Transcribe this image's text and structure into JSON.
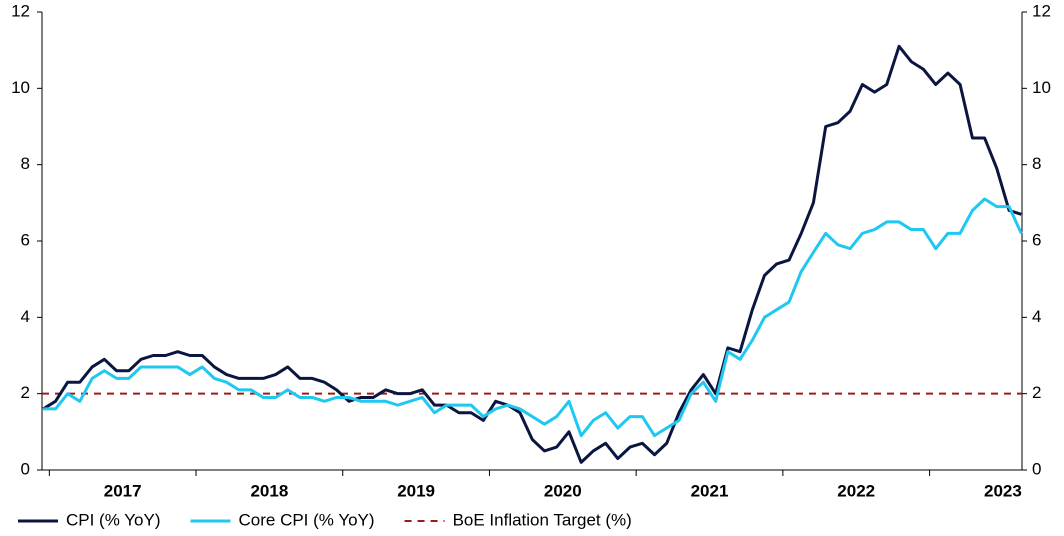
{
  "chart_data": {
    "type": "line",
    "x": [
      2016.958,
      2017.042,
      2017.125,
      2017.208,
      2017.292,
      2017.375,
      2017.458,
      2017.542,
      2017.625,
      2017.708,
      2017.792,
      2017.875,
      2017.958,
      2018.042,
      2018.125,
      2018.208,
      2018.292,
      2018.375,
      2018.458,
      2018.542,
      2018.625,
      2018.708,
      2018.792,
      2018.875,
      2018.958,
      2019.042,
      2019.125,
      2019.208,
      2019.292,
      2019.375,
      2019.458,
      2019.542,
      2019.625,
      2019.708,
      2019.792,
      2019.875,
      2019.958,
      2020.042,
      2020.125,
      2020.208,
      2020.292,
      2020.375,
      2020.458,
      2020.542,
      2020.625,
      2020.708,
      2020.792,
      2020.875,
      2020.958,
      2021.042,
      2021.125,
      2021.208,
      2021.292,
      2021.375,
      2021.458,
      2021.542,
      2021.625,
      2021.708,
      2021.792,
      2021.875,
      2021.958,
      2022.042,
      2022.125,
      2022.208,
      2022.292,
      2022.375,
      2022.458,
      2022.542,
      2022.625,
      2022.708,
      2022.792,
      2022.875,
      2022.958,
      2023.042,
      2023.125,
      2023.208,
      2023.292,
      2023.375,
      2023.458,
      2023.542,
      2023.625
    ],
    "series": [
      {
        "name": "CPI (% YoY)",
        "color": "#0b1640",
        "values": [
          1.6,
          1.8,
          2.3,
          2.3,
          2.7,
          2.9,
          2.6,
          2.6,
          2.9,
          3.0,
          3.0,
          3.1,
          3.0,
          3.0,
          2.7,
          2.5,
          2.4,
          2.4,
          2.4,
          2.5,
          2.7,
          2.4,
          2.4,
          2.3,
          2.1,
          1.8,
          1.9,
          1.9,
          2.1,
          2.0,
          2.0,
          2.1,
          1.7,
          1.7,
          1.5,
          1.5,
          1.3,
          1.8,
          1.7,
          1.5,
          0.8,
          0.5,
          0.6,
          1.0,
          0.2,
          0.5,
          0.7,
          0.3,
          0.6,
          0.7,
          0.4,
          0.7,
          1.5,
          2.1,
          2.5,
          2.0,
          3.2,
          3.1,
          4.2,
          5.1,
          5.4,
          5.5,
          6.2,
          7.0,
          9.0,
          9.1,
          9.4,
          10.1,
          9.9,
          10.1,
          11.1,
          10.7,
          10.5,
          10.1,
          10.4,
          10.1,
          8.7,
          8.7,
          7.9,
          6.8,
          6.7
        ]
      },
      {
        "name": "Core CPI (% YoY)",
        "color": "#1ec8f0",
        "values": [
          1.6,
          1.6,
          2.0,
          1.8,
          2.4,
          2.6,
          2.4,
          2.4,
          2.7,
          2.7,
          2.7,
          2.7,
          2.5,
          2.7,
          2.4,
          2.3,
          2.1,
          2.1,
          1.9,
          1.9,
          2.1,
          1.9,
          1.9,
          1.8,
          1.9,
          1.9,
          1.8,
          1.8,
          1.8,
          1.7,
          1.8,
          1.9,
          1.5,
          1.7,
          1.7,
          1.7,
          1.4,
          1.6,
          1.7,
          1.6,
          1.4,
          1.2,
          1.4,
          1.8,
          0.9,
          1.3,
          1.5,
          1.1,
          1.4,
          1.4,
          0.9,
          1.1,
          1.3,
          2.0,
          2.3,
          1.8,
          3.1,
          2.9,
          3.4,
          4.0,
          4.2,
          4.4,
          5.2,
          5.7,
          6.2,
          5.9,
          5.8,
          6.2,
          6.3,
          6.5,
          6.5,
          6.3,
          6.3,
          5.8,
          6.2,
          6.2,
          6.8,
          7.1,
          6.9,
          6.9,
          6.2
        ]
      }
    ],
    "hlines": [
      {
        "name": "BoE Inflation Target (%)",
        "value": 2,
        "color": "#9b1c1c",
        "dashed": true
      }
    ],
    "xlim": [
      2016.95,
      2023.63
    ],
    "xticks": [
      {
        "value": 2017.5,
        "label": "2017"
      },
      {
        "value": 2018.5,
        "label": "2018"
      },
      {
        "value": 2019.5,
        "label": "2019"
      },
      {
        "value": 2020.5,
        "label": "2020"
      },
      {
        "value": 2021.5,
        "label": "2021"
      },
      {
        "value": 2022.5,
        "label": "2022"
      },
      {
        "value": 2023.5,
        "label": "2023"
      }
    ],
    "ylim": [
      0,
      12
    ],
    "yticks": [
      0,
      2,
      4,
      6,
      8,
      10,
      12
    ],
    "y2lim": [
      0,
      12
    ],
    "y2ticks": [
      0,
      2,
      4,
      6,
      8,
      10,
      12
    ],
    "legend": "bottom",
    "grid": false
  }
}
